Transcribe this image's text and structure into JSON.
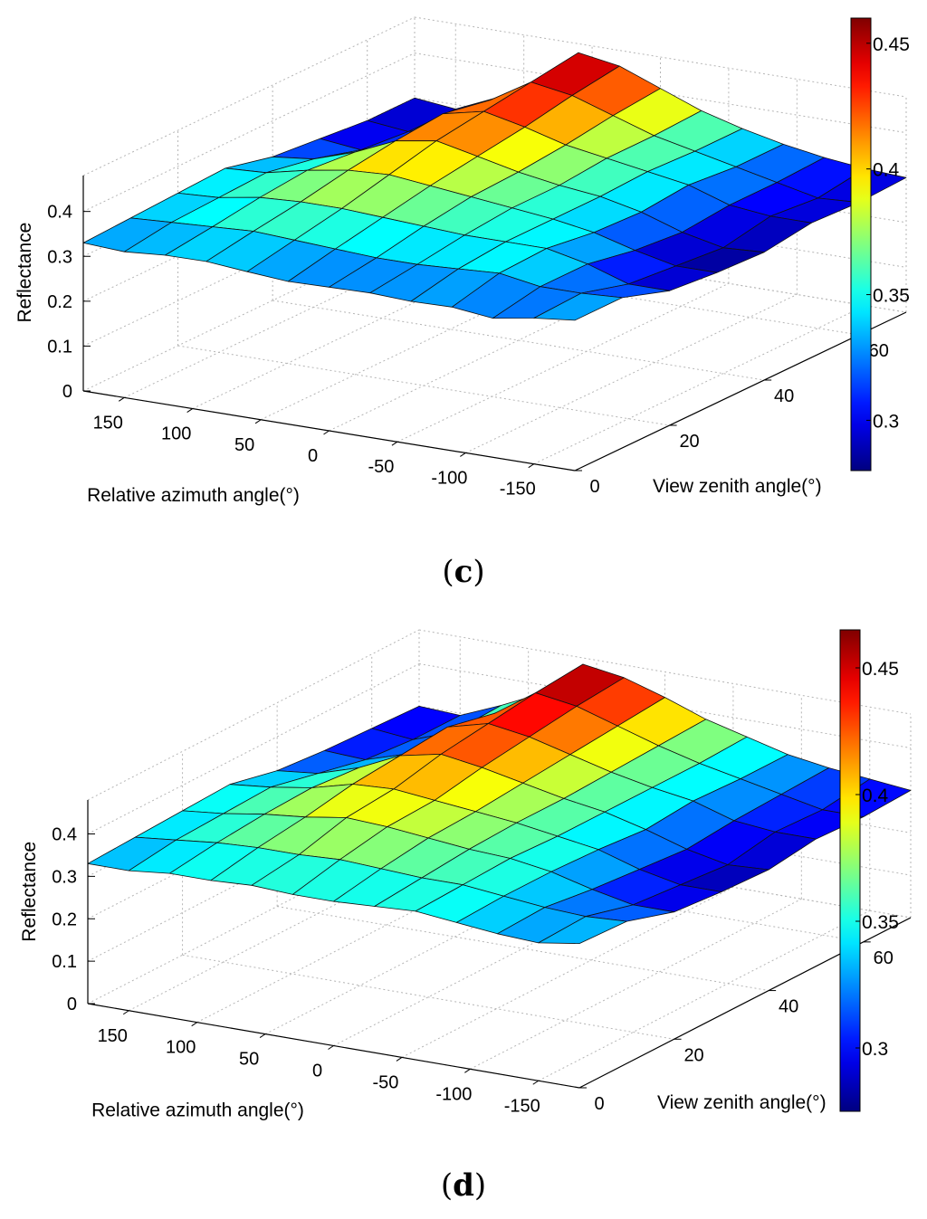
{
  "chart_data": [
    {
      "type": "surface3d",
      "panel_label": "c",
      "zlabel": "Reflectance",
      "xlabel": "Relative azimuth angle(°)",
      "ylabel": "View zenith angle(°)",
      "z_ticks": [
        "0",
        "0.1",
        "0.2",
        "0.3",
        "0.4"
      ],
      "x_ticks": [
        "150",
        "100",
        "50",
        "0",
        "-50",
        "-100",
        "-150"
      ],
      "y_ticks": [
        "0",
        "20",
        "40",
        "60"
      ],
      "zlim": [
        0,
        0.48
      ],
      "colorbar_range": [
        0.28,
        0.46
      ],
      "colorbar_ticks": [
        "0.3",
        "0.35",
        "0.4",
        "0.45"
      ],
      "azimuth_values": [
        180,
        150,
        120,
        90,
        60,
        30,
        0,
        -30,
        -60,
        -90,
        -120,
        -150,
        -180
      ],
      "zenith_values": [
        0,
        10,
        20,
        30,
        40,
        50,
        60,
        70
      ],
      "z": [
        [
          0.33,
          0.325,
          0.332,
          0.333,
          0.325,
          0.318,
          0.32,
          0.322,
          0.318,
          0.32,
          0.31,
          0.325,
          0.335
        ],
        [
          0.335,
          0.34,
          0.345,
          0.35,
          0.345,
          0.34,
          0.335,
          0.335,
          0.34,
          0.345,
          0.33,
          0.33,
          0.335
        ],
        [
          0.34,
          0.345,
          0.36,
          0.365,
          0.365,
          0.36,
          0.355,
          0.35,
          0.35,
          0.35,
          0.33,
          0.3,
          0.3
        ],
        [
          0.345,
          0.35,
          0.37,
          0.385,
          0.39,
          0.38,
          0.37,
          0.36,
          0.35,
          0.335,
          0.31,
          0.29,
          0.29
        ],
        [
          0.32,
          0.33,
          0.36,
          0.4,
          0.415,
          0.395,
          0.375,
          0.36,
          0.35,
          0.33,
          0.3,
          0.28,
          0.285
        ],
        [
          0.31,
          0.3,
          0.33,
          0.41,
          0.43,
          0.41,
          0.385,
          0.37,
          0.355,
          0.34,
          0.31,
          0.3,
          0.3
        ],
        [
          0.3,
          0.29,
          0.32,
          0.39,
          0.445,
          0.43,
          0.4,
          0.37,
          0.35,
          0.33,
          0.31,
          0.29,
          0.295
        ],
        [
          0.3,
          0.29,
          0.33,
          0.375,
          0.46,
          0.445,
          0.41,
          0.375,
          0.35,
          0.33,
          0.315,
          0.305,
          0.3
        ]
      ]
    },
    {
      "type": "surface3d",
      "panel_label": "d",
      "zlabel": "Reflectance",
      "xlabel": "Relative azimuth angle(°)",
      "ylabel": "View zenith angle(°)",
      "z_ticks": [
        "0",
        "0.1",
        "0.2",
        "0.3",
        "0.4"
      ],
      "x_ticks": [
        "150",
        "100",
        "50",
        "0",
        "-50",
        "-100",
        "-150"
      ],
      "y_ticks": [
        "0",
        "20",
        "40",
        "60"
      ],
      "zlim": [
        0,
        0.48
      ],
      "colorbar_range": [
        0.275,
        0.465
      ],
      "colorbar_ticks": [
        "0.3",
        "0.35",
        "0.4",
        "0.45"
      ],
      "azimuth_values": [
        180,
        150,
        120,
        90,
        60,
        30,
        0,
        -30,
        -60,
        -90,
        -120,
        -150,
        -180
      ],
      "zenith_values": [
        0,
        10,
        20,
        30,
        40,
        50,
        60,
        70
      ],
      "z": [
        [
          0.33,
          0.33,
          0.34,
          0.34,
          0.345,
          0.34,
          0.34,
          0.345,
          0.35,
          0.34,
          0.33,
          0.325,
          0.34
        ],
        [
          0.335,
          0.345,
          0.355,
          0.36,
          0.36,
          0.365,
          0.36,
          0.355,
          0.355,
          0.345,
          0.335,
          0.33,
          0.335
        ],
        [
          0.34,
          0.35,
          0.365,
          0.375,
          0.39,
          0.385,
          0.375,
          0.365,
          0.36,
          0.345,
          0.32,
          0.3,
          0.3
        ],
        [
          0.345,
          0.355,
          0.37,
          0.395,
          0.4,
          0.39,
          0.38,
          0.37,
          0.355,
          0.34,
          0.31,
          0.29,
          0.29
        ],
        [
          0.32,
          0.33,
          0.36,
          0.405,
          0.425,
          0.41,
          0.39,
          0.37,
          0.355,
          0.33,
          0.3,
          0.28,
          0.285
        ],
        [
          0.31,
          0.305,
          0.335,
          0.415,
          0.44,
          0.425,
          0.4,
          0.375,
          0.355,
          0.34,
          0.31,
          0.3,
          0.3
        ],
        [
          0.305,
          0.295,
          0.33,
          0.39,
          0.455,
          0.44,
          0.41,
          0.38,
          0.355,
          0.335,
          0.315,
          0.295,
          0.295
        ],
        [
          0.3,
          0.295,
          0.335,
          0.38,
          0.465,
          0.45,
          0.42,
          0.385,
          0.36,
          0.335,
          0.32,
          0.31,
          0.3
        ]
      ]
    }
  ]
}
